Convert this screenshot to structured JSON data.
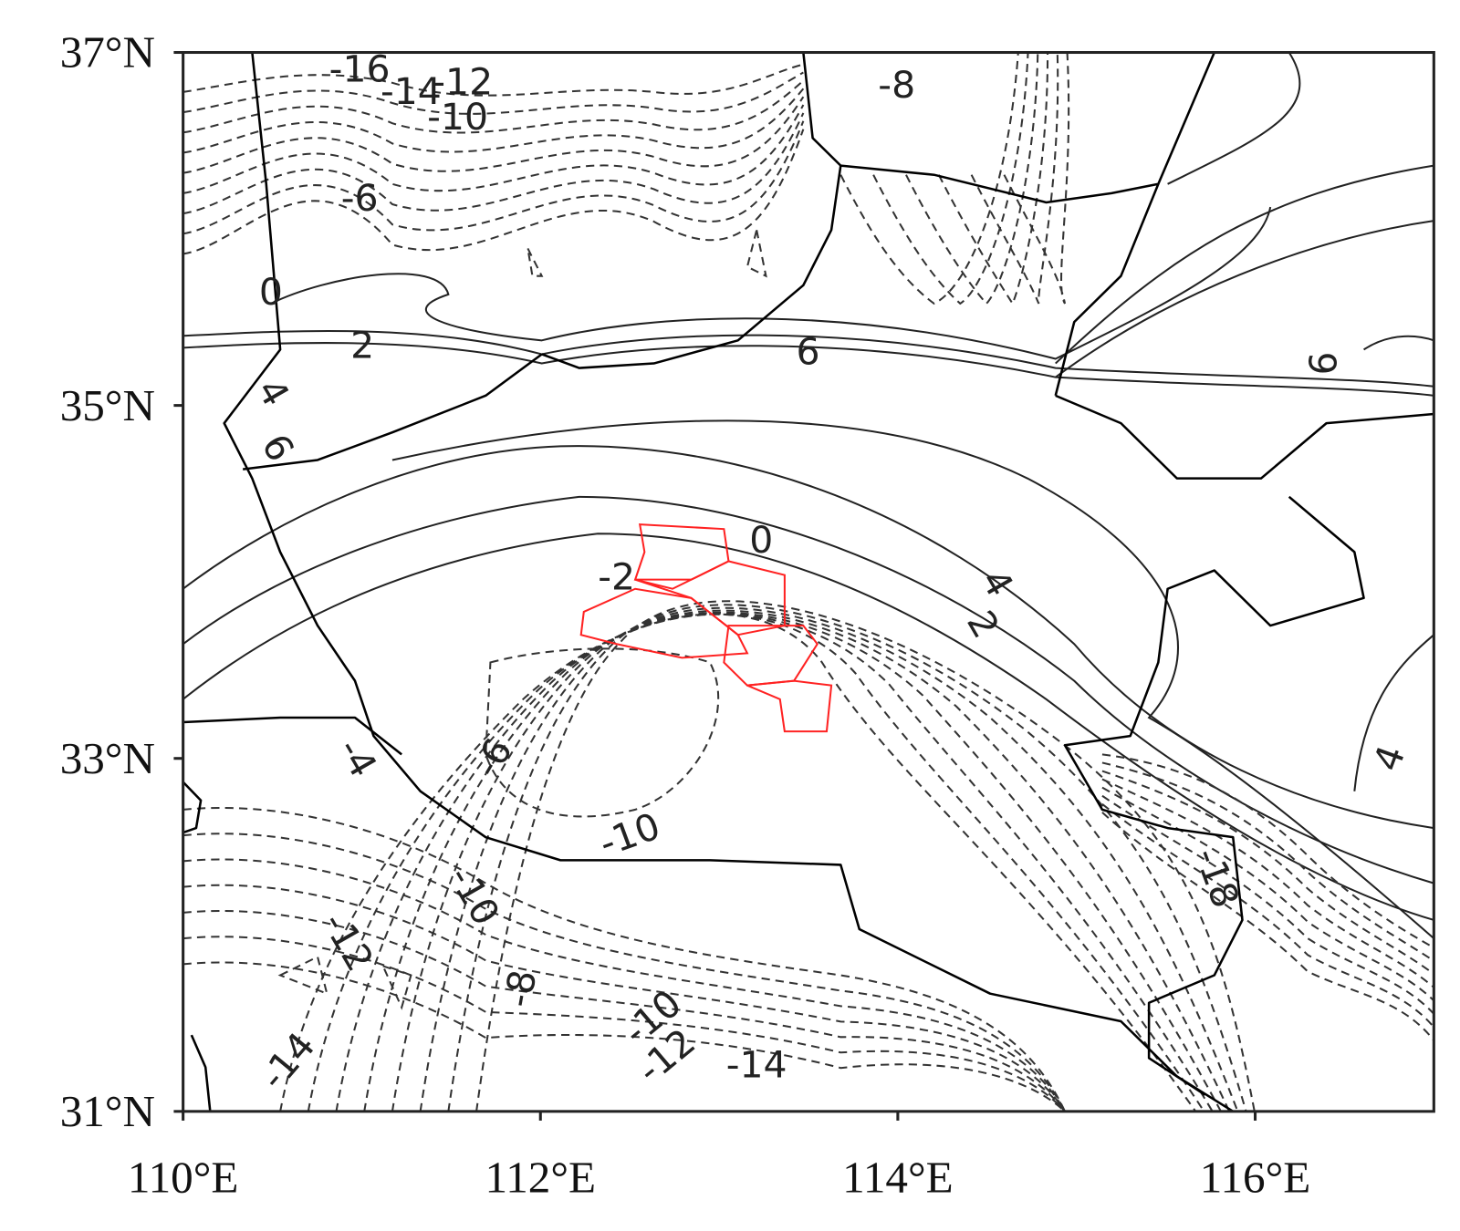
{
  "map": {
    "lon_range": [
      110,
      117
    ],
    "lat_range": [
      31,
      37
    ],
    "lat_ticks": [
      {
        "value": 37,
        "label": "37°N"
      },
      {
        "value": 35,
        "label": "35°N"
      },
      {
        "value": 33,
        "label": "33°N"
      },
      {
        "value": 31,
        "label": "31°N"
      }
    ],
    "lon_ticks": [
      {
        "value": 110,
        "label": "110°E"
      },
      {
        "value": 112,
        "label": "112°E"
      },
      {
        "value": 114,
        "label": "114°E"
      },
      {
        "value": 116,
        "label": "116°E"
      }
    ],
    "contour_labels": [
      -16,
      -14,
      -12,
      -10,
      -8,
      -6,
      0,
      2,
      4,
      6,
      6,
      6,
      0,
      4,
      2,
      -2,
      -6,
      -4,
      -10,
      -10,
      -12,
      -8,
      -10,
      -12,
      -14,
      -14,
      4,
      -18
    ]
  }
}
